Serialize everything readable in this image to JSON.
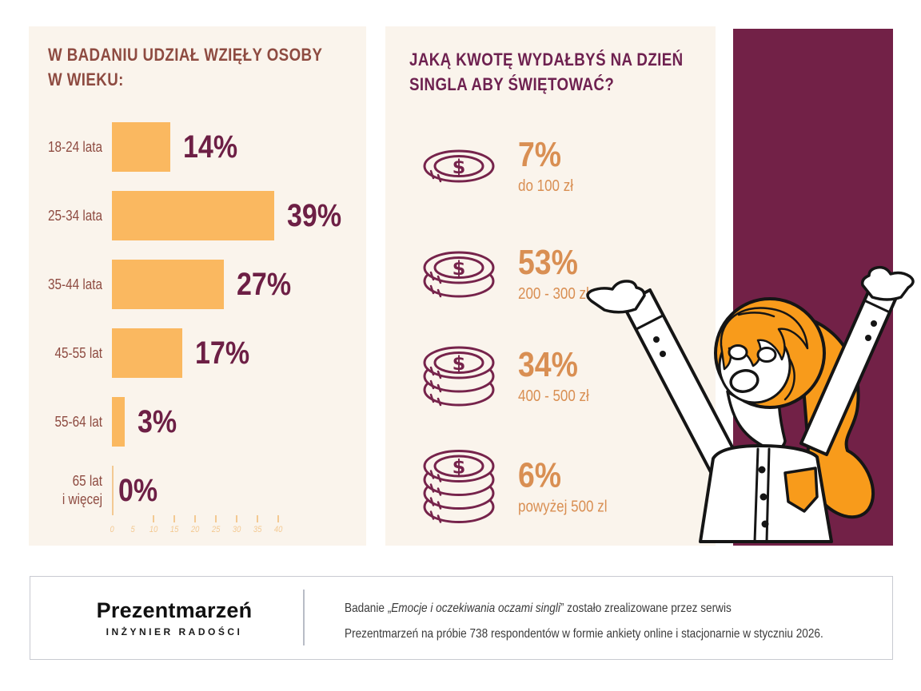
{
  "palette": {
    "cream": "#faf4ec",
    "maroon_panel": "#722147",
    "bar_orange": "#fab860",
    "accent_orange": "#d98f53",
    "tick_orange": "#f3c992",
    "brown_text": "#8e4b41",
    "plum_title": "#6e2150",
    "value_maroon": "#6d1f45",
    "coin_outline": "#76234b",
    "hair_orange": "#f89b1b",
    "outline_black": "#151515",
    "footer_border": "#c8cad1",
    "footer_divider": "#b8bcc6",
    "footer_text": "#3b3b3b"
  },
  "chart_data": [
    {
      "type": "bar",
      "orientation": "horizontal",
      "title": "W BADANIU UDZIAŁ WZIĘŁY OSOBY W WIEKU:",
      "title_lines": [
        "W BADANIU UDZIAŁ WZIĘŁY OSOBY",
        "W WIEKU:"
      ],
      "categories": [
        [
          "18-24 lata"
        ],
        [
          "25-34 lata"
        ],
        [
          "35-44 lata"
        ],
        [
          "45-55 lat"
        ],
        [
          "55-64 lat"
        ],
        [
          "65 lat",
          "i więcej"
        ]
      ],
      "values": [
        14,
        39,
        27,
        17,
        3,
        0
      ],
      "value_labels": [
        "14%",
        "39%",
        "27%",
        "17%",
        "3%",
        "0%"
      ],
      "xlim": [
        0,
        40
      ],
      "x_ticks": [
        0,
        5,
        10,
        15,
        20,
        25,
        30,
        35,
        40
      ],
      "grid": false,
      "legend": "none"
    },
    {
      "type": "pictogram",
      "title": "JAKĄ KWOTĘ WYDAŁBYŚ NA DZIEŃ SINGLA ABY ŚWIĘTOWAĆ?",
      "title_lines": [
        "JAKĄ KWOTĘ WYDAŁBYŚ NA DZIEŃ",
        "SINGLA ABY ŚWIĘTOWAĆ?"
      ],
      "icon": "coin-stack-icon",
      "items": [
        {
          "coins": 1,
          "value": "7%",
          "label": "do 100 zł"
        },
        {
          "coins": 2,
          "value": "53%",
          "label": "200 - 300 zł"
        },
        {
          "coins": 3,
          "value": "34%",
          "label": "400 - 500 zł"
        },
        {
          "coins": 4,
          "value": "6%",
          "label": "powyżej 500 zl"
        }
      ]
    }
  ],
  "footer": {
    "logo_title": "Prezentmarzeń",
    "logo_subtitle": "INŻYNIER RADOŚCI",
    "note_prefix": "Badanie „",
    "note_study_title": "Emocje i oczekiwania oczami singli",
    "note_suffix": "” zostało zrealizowane przez serwis",
    "note_line2": "Prezentmarzeń na próbie 738 respondentów w formie ankiety online i stacjonarnie w styczniu 2026."
  }
}
